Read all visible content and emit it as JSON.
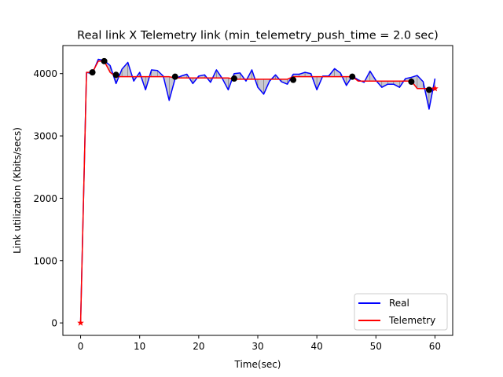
{
  "chart_data": {
    "type": "line",
    "title": "Real link X Telemetry link (min_telemetry_push_time = 2.0 sec)",
    "xlabel": "Time(sec)",
    "ylabel": "Link utilization (Kbits/secs)",
    "xlim": [
      -3,
      63
    ],
    "ylim": [
      -200,
      4450
    ],
    "xticks": [
      0,
      10,
      20,
      30,
      40,
      50,
      60
    ],
    "yticks": [
      0,
      1000,
      2000,
      3000,
      4000
    ],
    "grid": false,
    "legend_position": "lower-right",
    "fill_between": true,
    "series": [
      {
        "name": "Real",
        "color": "#0000ff",
        "x": [
          0,
          1,
          2,
          3,
          4,
          5,
          6,
          7,
          8,
          9,
          10,
          11,
          12,
          13,
          14,
          15,
          16,
          17,
          18,
          19,
          20,
          21,
          22,
          23,
          24,
          25,
          26,
          27,
          28,
          29,
          30,
          31,
          32,
          33,
          34,
          35,
          36,
          37,
          38,
          39,
          40,
          41,
          42,
          43,
          44,
          45,
          46,
          47,
          48,
          49,
          50,
          51,
          52,
          53,
          54,
          55,
          56,
          57,
          58,
          59,
          60
        ],
        "values": [
          0,
          4020,
          4000,
          4230,
          4210,
          4130,
          3840,
          4070,
          4180,
          3880,
          4020,
          3740,
          4060,
          4050,
          3960,
          3570,
          3920,
          3960,
          3990,
          3840,
          3960,
          3980,
          3860,
          4060,
          3920,
          3740,
          4000,
          4010,
          3880,
          4060,
          3780,
          3670,
          3880,
          3980,
          3870,
          3830,
          3990,
          3990,
          4020,
          4000,
          3740,
          3960,
          3960,
          4080,
          4010,
          3810,
          3960,
          3900,
          3860,
          4040,
          3890,
          3780,
          3830,
          3830,
          3780,
          3920,
          3940,
          3970,
          3870,
          3430,
          3920
        ]
      },
      {
        "name": "Telemetry",
        "color": "#ff0000",
        "x": [
          0,
          1,
          2,
          3,
          4,
          5,
          6,
          7,
          8,
          9,
          10,
          11,
          12,
          13,
          14,
          15,
          16,
          17,
          18,
          19,
          20,
          21,
          22,
          23,
          24,
          25,
          26,
          27,
          28,
          29,
          30,
          31,
          32,
          33,
          34,
          35,
          36,
          37,
          38,
          39,
          40,
          41,
          42,
          43,
          44,
          45,
          46,
          47,
          48,
          49,
          50,
          51,
          52,
          53,
          54,
          55,
          56,
          57,
          58,
          59,
          60
        ],
        "values": [
          0,
          4020,
          4020,
          4200,
          4200,
          4020,
          3950,
          3950,
          3950,
          3950,
          3950,
          3950,
          3950,
          3950,
          3950,
          3950,
          3930,
          3930,
          3930,
          3930,
          3930,
          3930,
          3930,
          3930,
          3930,
          3930,
          3910,
          3910,
          3910,
          3910,
          3910,
          3910,
          3910,
          3910,
          3910,
          3910,
          3950,
          3950,
          3950,
          3950,
          3950,
          3950,
          3950,
          3950,
          3950,
          3950,
          3950,
          3880,
          3880,
          3880,
          3880,
          3880,
          3880,
          3880,
          3880,
          3880,
          3880,
          3760,
          3760,
          3760,
          3760
        ]
      }
    ],
    "push_points": {
      "x": [
        2,
        4,
        6,
        16,
        26,
        36,
        46,
        56,
        59
      ],
      "values": [
        4020,
        4200,
        3980,
        3950,
        3920,
        3900,
        3950,
        3870,
        3740
      ],
      "color": "#000000"
    },
    "star_points": {
      "x": [
        0,
        60
      ],
      "values": [
        0,
        3760
      ],
      "color": "#ff0000"
    },
    "fill_color": "#c8c8d2"
  }
}
